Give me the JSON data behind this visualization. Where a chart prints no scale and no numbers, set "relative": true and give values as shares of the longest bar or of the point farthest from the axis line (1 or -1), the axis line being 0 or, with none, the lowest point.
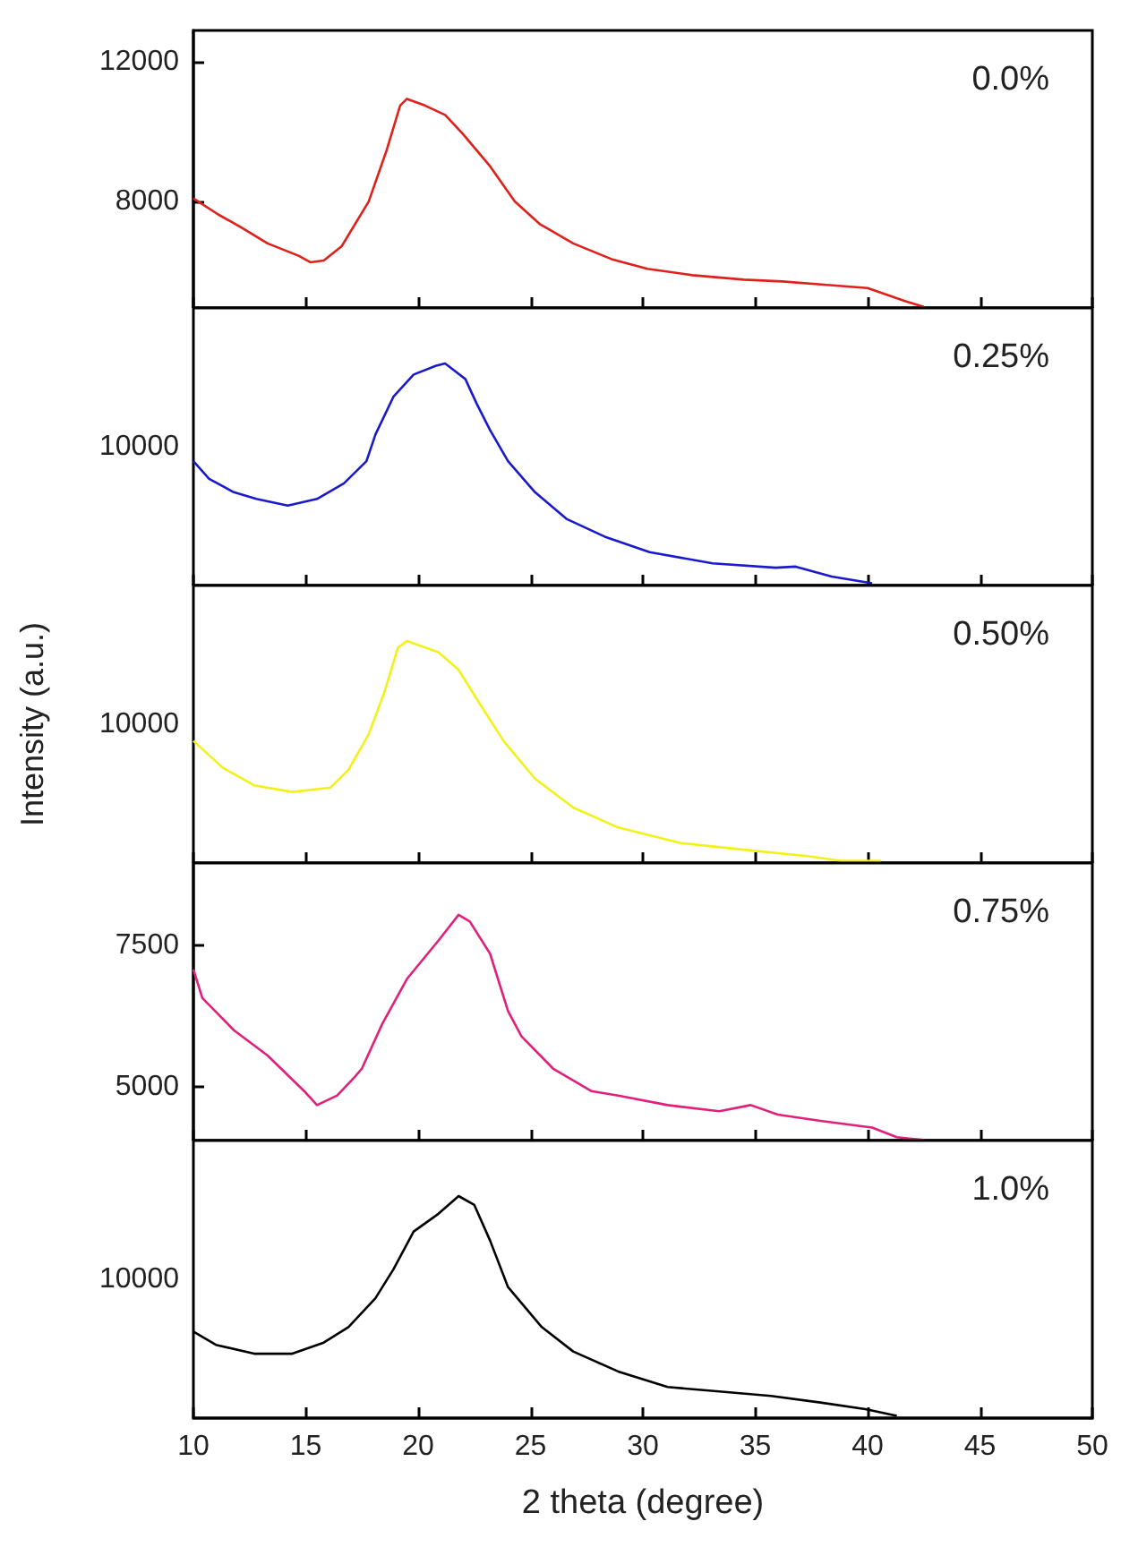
{
  "chart_data": [
    {
      "type": "line",
      "marker": "none",
      "tick_labels": "y",
      "xlim": [
        10,
        50
      ],
      "xticks": [
        10,
        15,
        20,
        25,
        30,
        35,
        40,
        45,
        50
      ],
      "ylim": [
        4950,
        12900
      ],
      "yticks": [
        8000,
        12000
      ],
      "series": [
        {
          "name": "0.0%",
          "color": "#e0201b",
          "x": [
            10,
            11.1,
            12.1,
            13.3,
            14.7,
            15.2,
            15.8,
            16.6,
            17.8,
            18.6,
            19.2,
            19.5,
            20.3,
            21.2,
            22.0,
            23.2,
            24.3,
            25.4,
            26.9,
            28.6,
            30.2,
            32.2,
            34.5,
            36.2,
            38.2,
            40.0,
            41.6,
            42.5
          ],
          "values": [
            8090,
            7630,
            7270,
            6800,
            6440,
            6260,
            6310,
            6720,
            8000,
            9470,
            10750,
            10940,
            10750,
            10480,
            9930,
            9010,
            8000,
            7360,
            6800,
            6350,
            6070,
            5890,
            5760,
            5710,
            5610,
            5520,
            5160,
            4980
          ]
        }
      ]
    },
    {
      "type": "line",
      "marker": "none",
      "tick_labels": "y",
      "relative": true,
      "xlim": [
        10,
        50
      ],
      "xticks": [
        10,
        15,
        20,
        25,
        30,
        35,
        40,
        45,
        50
      ],
      "annotations": [
        "10000"
      ],
      "series": [
        {
          "name": "0.25%",
          "color": "#1a1acc",
          "x": [
            10,
            10.7,
            11.8,
            12.8,
            14.2,
            15.5,
            16.7,
            17.7,
            18.1,
            18.9,
            19.8,
            20.8,
            21.2,
            22.1,
            22.6,
            23.2,
            24.0,
            25.2,
            26.6,
            28.3,
            30.3,
            33.1,
            35.9,
            36.8,
            38.4,
            40.2
          ],
          "values": [
            0.56,
            0.48,
            0.42,
            0.39,
            0.36,
            0.39,
            0.46,
            0.56,
            0.68,
            0.85,
            0.95,
            0.99,
            1.0,
            0.93,
            0.82,
            0.7,
            0.56,
            0.42,
            0.3,
            0.22,
            0.15,
            0.1,
            0.08,
            0.085,
            0.04,
            0.01
          ]
        }
      ]
    },
    {
      "type": "line",
      "marker": "none",
      "tick_labels": "y",
      "relative": true,
      "xlim": [
        10,
        50
      ],
      "xticks": [
        10,
        15,
        20,
        25,
        30,
        35,
        40,
        45,
        50
      ],
      "ylabel": "Intensity (a.u.)",
      "annotations": [
        "10000"
      ],
      "series": [
        {
          "name": "0.50%",
          "color": "#f2f21a",
          "x": [
            10,
            11.3,
            12.7,
            14.4,
            16.1,
            16.9,
            17.8,
            18.5,
            19.1,
            19.5,
            20.9,
            21.8,
            22.6,
            23.8,
            25.2,
            26.9,
            28.9,
            31.7,
            34.5,
            37.4,
            38.8,
            40.6
          ],
          "values": [
            0.55,
            0.43,
            0.35,
            0.32,
            0.34,
            0.42,
            0.58,
            0.77,
            0.97,
            1.0,
            0.95,
            0.87,
            0.74,
            0.55,
            0.38,
            0.25,
            0.16,
            0.09,
            0.06,
            0.03,
            0.01,
            0.01
          ]
        }
      ]
    },
    {
      "type": "line",
      "marker": "none",
      "tick_labels": "y",
      "xlim": [
        10,
        50
      ],
      "xticks": [
        10,
        15,
        20,
        25,
        30,
        35,
        40,
        45,
        50
      ],
      "ylim": [
        4040,
        8970
      ],
      "yticks": [
        5000,
        7500
      ],
      "series": [
        {
          "name": "0.75%",
          "color": "#e0207a",
          "x": [
            10,
            10.4,
            11.8,
            13.3,
            15.0,
            15.5,
            16.4,
            17.2,
            17.5,
            18.4,
            19.5,
            20.9,
            21.8,
            22.3,
            23.2,
            24.0,
            24.6,
            26.0,
            27.7,
            28.9,
            31.1,
            33.4,
            34.8,
            36.0,
            37.9,
            40.2,
            41.3,
            42.5
          ],
          "values": [
            7080,
            6570,
            6000,
            5550,
            4890,
            4670,
            4840,
            5180,
            5320,
            6110,
            6910,
            7590,
            8050,
            7930,
            7360,
            6340,
            5890,
            5320,
            4920,
            4840,
            4670,
            4560,
            4670,
            4500,
            4390,
            4270,
            4100,
            4050
          ]
        }
      ]
    },
    {
      "type": "line",
      "marker": "none",
      "relative": true,
      "xlim": [
        10,
        50
      ],
      "xticks": [
        10,
        15,
        20,
        25,
        30,
        35,
        40,
        45,
        50
      ],
      "xlabel": "2 theta (degree)",
      "annotations": [
        "10000"
      ],
      "series": [
        {
          "name": "1.0%",
          "color": "#000000",
          "x": [
            10,
            11.0,
            12.7,
            14.4,
            15.8,
            16.9,
            18.1,
            18.9,
            19.8,
            20.9,
            21.8,
            22.5,
            23.2,
            24.0,
            25.5,
            26.9,
            28.9,
            31.1,
            33.4,
            35.7,
            37.9,
            39.9,
            41.3
          ],
          "values": [
            0.39,
            0.33,
            0.29,
            0.29,
            0.34,
            0.41,
            0.54,
            0.67,
            0.84,
            0.92,
            1.0,
            0.96,
            0.8,
            0.59,
            0.41,
            0.3,
            0.21,
            0.14,
            0.12,
            0.1,
            0.07,
            0.04,
            0.01
          ]
        }
      ]
    }
  ]
}
